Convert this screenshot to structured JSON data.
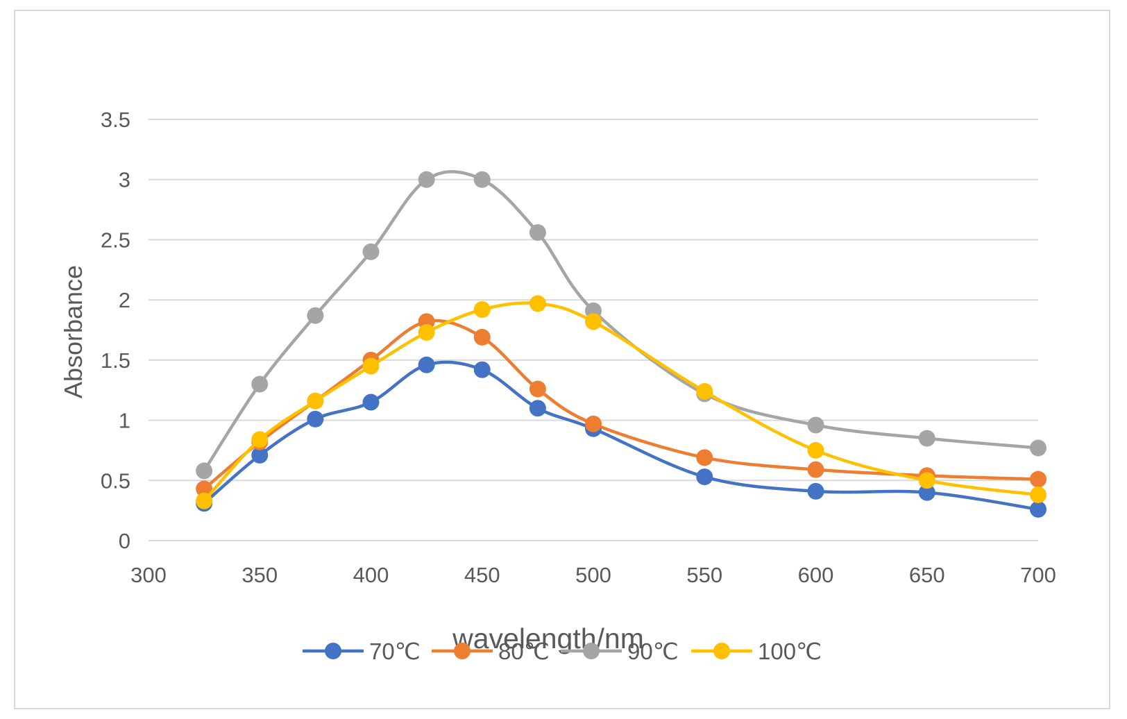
{
  "chart_data": {
    "type": "line",
    "title": "",
    "xlabel": "wavelength/nm",
    "ylabel": "Absorbance",
    "xlim": [
      300,
      700
    ],
    "ylim": [
      0,
      3.5
    ],
    "x_ticks": [
      "300",
      "350",
      "400",
      "450",
      "500",
      "550",
      "600",
      "650",
      "700"
    ],
    "y_ticks": [
      "0",
      "0.5",
      "1",
      "1.5",
      "2",
      "2.5",
      "3",
      "3.5"
    ],
    "grid": true,
    "legend_position": "bottom",
    "smooth": true,
    "x": [
      325,
      350,
      375,
      400,
      425,
      450,
      475,
      500,
      550,
      600,
      650,
      700
    ],
    "series": [
      {
        "name": "70℃",
        "color": "#4472C4",
        "values": [
          0.31,
          0.71,
          1.01,
          1.15,
          1.46,
          1.42,
          1.1,
          0.93,
          0.53,
          0.41,
          0.4,
          0.26
        ]
      },
      {
        "name": "80℃",
        "color": "#ED7D31",
        "values": [
          0.43,
          0.82,
          1.16,
          1.5,
          1.82,
          1.69,
          1.26,
          0.97,
          0.69,
          0.59,
          0.54,
          0.51
        ]
      },
      {
        "name": "90℃",
        "color": "#A5A5A5",
        "values": [
          0.58,
          1.3,
          1.87,
          2.4,
          3.0,
          3.0,
          2.56,
          1.91,
          1.22,
          0.96,
          0.85,
          0.77
        ]
      },
      {
        "name": "100℃",
        "color": "#FFC000",
        "values": [
          0.33,
          0.84,
          1.16,
          1.45,
          1.73,
          1.92,
          1.97,
          1.82,
          1.24,
          0.75,
          0.5,
          0.38
        ]
      }
    ]
  }
}
